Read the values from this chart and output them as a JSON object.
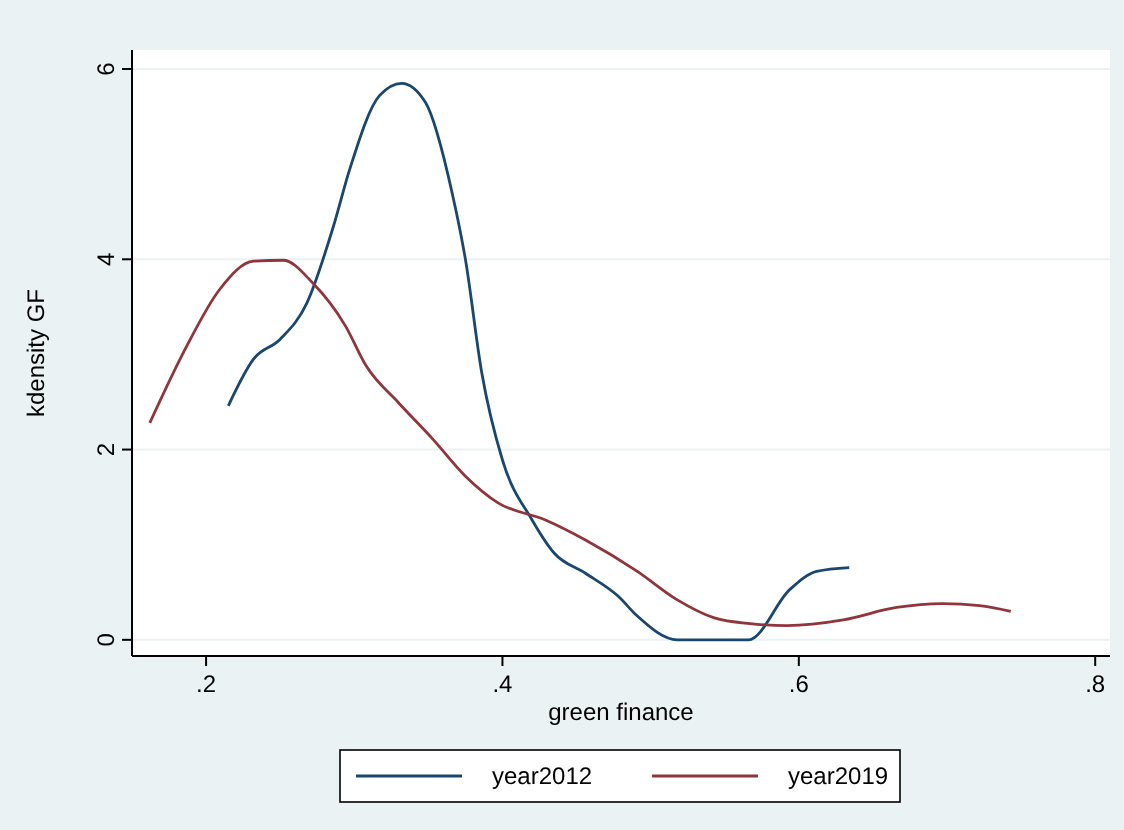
{
  "chart_data": {
    "type": "line",
    "xlabel": "green finance",
    "ylabel": "kdensity GF",
    "xlim": [
      0.15,
      0.81
    ],
    "ylim": [
      -0.17,
      6.2
    ],
    "xticks": [
      {
        "value": 0.2,
        "label": ".2"
      },
      {
        "value": 0.4,
        "label": ".4"
      },
      {
        "value": 0.6,
        "label": ".6"
      },
      {
        "value": 0.8,
        "label": ".8"
      }
    ],
    "yticks": [
      0,
      2,
      4,
      6
    ],
    "grid": "y",
    "legend": "bottom",
    "marker": "none",
    "line_style": "solid",
    "series": [
      {
        "name": "year2012",
        "color": "#1a476f",
        "x": [
          0.215,
          0.232,
          0.25,
          0.268,
          0.286,
          0.297,
          0.317,
          0.332,
          0.348,
          0.366,
          0.375,
          0.386,
          0.4,
          0.42,
          0.435,
          0.456,
          0.478,
          0.491,
          0.518,
          0.566,
          0.594,
          0.612,
          0.634
        ],
        "values": [
          2.46,
          2.95,
          3.16,
          3.54,
          4.35,
          4.95,
          5.72,
          5.85,
          5.65,
          4.7,
          4.0,
          2.81,
          1.89,
          1.26,
          0.91,
          0.7,
          0.46,
          0.25,
          0,
          0,
          0.53,
          0.72,
          0.76
        ]
      },
      {
        "name": "year2019",
        "color": "#90353b",
        "x": [
          0.162,
          0.187,
          0.209,
          0.232,
          0.252,
          0.272,
          0.294,
          0.308,
          0.33,
          0.353,
          0.375,
          0.397,
          0.429,
          0.456,
          0.491,
          0.518,
          0.543,
          0.567,
          0.592,
          0.63,
          0.666,
          0.697,
          0.722,
          0.743
        ],
        "values": [
          2.28,
          3.09,
          3.68,
          3.98,
          3.99,
          3.75,
          3.3,
          2.88,
          2.49,
          2.11,
          1.72,
          1.44,
          1.26,
          1.05,
          0.72,
          0.42,
          0.23,
          0.17,
          0.15,
          0.21,
          0.34,
          0.38,
          0.36,
          0.3
        ]
      }
    ]
  }
}
